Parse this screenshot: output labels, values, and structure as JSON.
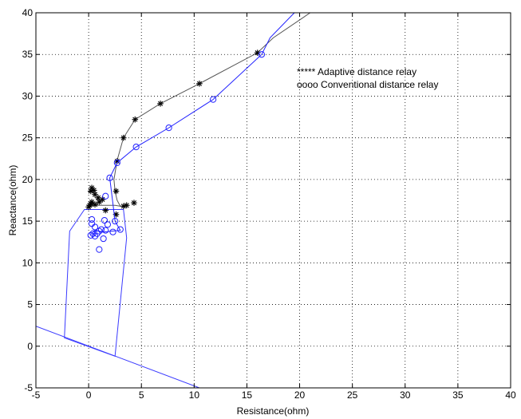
{
  "chart_data": {
    "type": "scatter",
    "xlabel": "Resistance(ohm)",
    "ylabel": "Reactance(ohm)",
    "xlim": [
      -5,
      40
    ],
    "ylim": [
      -5,
      40
    ],
    "xticks": [
      "-5",
      "0",
      "5",
      "10",
      "15",
      "20",
      "25",
      "30",
      "35",
      "40"
    ],
    "yticks": [
      "-5",
      "0",
      "5",
      "10",
      "15",
      "20",
      "25",
      "30",
      "35",
      "40"
    ],
    "grid": true,
    "legend_position": "top-right",
    "legend": [
      "***** Adaptive distance relay",
      "oooo Conventional distance relay"
    ],
    "colors": {
      "adaptive": "#000000",
      "adaptive_line": "#555555",
      "conventional": "#1f1fff",
      "zone": "#3a3aff",
      "grid": "#000000"
    },
    "series": [
      {
        "marker": "star",
        "color": "#000000",
        "trajectory": [
          [
            0.2,
            16.8
          ],
          [
            0.8,
            16.9
          ],
          [
            1.5,
            16.9
          ],
          [
            2.5,
            16.9
          ],
          [
            3.0,
            16.8
          ],
          [
            2.7,
            17.5
          ],
          [
            2.5,
            18.6
          ],
          [
            2.4,
            20.0
          ],
          [
            2.7,
            22.3
          ],
          [
            3.3,
            25.0
          ],
          [
            4.4,
            27.2
          ],
          [
            6.8,
            29.1
          ],
          [
            10.5,
            31.5
          ],
          [
            16.0,
            35.2
          ],
          [
            17.5,
            37.0
          ],
          [
            21.0,
            40.0
          ]
        ],
        "points": [
          [
            0.0,
            16.7
          ],
          [
            0.1,
            16.9
          ],
          [
            0.2,
            17.1
          ],
          [
            0.3,
            17.3
          ],
          [
            0.2,
            18.6
          ],
          [
            0.3,
            19.0
          ],
          [
            0.5,
            18.7
          ],
          [
            0.6,
            18.2
          ],
          [
            0.9,
            17.8
          ],
          [
            1.3,
            17.6
          ],
          [
            0.6,
            17.0
          ],
          [
            1.0,
            17.3
          ],
          [
            1.6,
            16.3
          ],
          [
            2.6,
            15.8
          ],
          [
            2.6,
            18.6
          ],
          [
            3.3,
            16.8
          ],
          [
            3.6,
            16.9
          ],
          [
            4.3,
            17.2
          ],
          [
            2.7,
            22.2
          ],
          [
            3.3,
            25.0
          ],
          [
            4.4,
            27.2
          ],
          [
            6.8,
            29.1
          ],
          [
            10.5,
            31.5
          ],
          [
            16.0,
            35.2
          ]
        ]
      },
      {
        "marker": "circle",
        "color": "#1f1fff",
        "trajectory": [
          [
            0.2,
            13.4
          ],
          [
            0.6,
            13.9
          ],
          [
            1.4,
            13.7
          ],
          [
            2.2,
            13.8
          ],
          [
            3.0,
            13.9
          ],
          [
            2.5,
            15.0
          ],
          [
            2.3,
            17.1
          ],
          [
            2.0,
            20.2
          ],
          [
            2.7,
            22.0
          ],
          [
            4.5,
            23.9
          ],
          [
            7.6,
            26.2
          ],
          [
            11.8,
            29.6
          ],
          [
            16.4,
            35.0
          ],
          [
            17.2,
            37.0
          ],
          [
            19.5,
            40.0
          ]
        ],
        "points": [
          [
            0.2,
            13.3
          ],
          [
            0.4,
            13.5
          ],
          [
            0.6,
            13.2
          ],
          [
            0.8,
            13.5
          ],
          [
            1.0,
            13.8
          ],
          [
            0.3,
            14.7
          ],
          [
            0.3,
            15.2
          ],
          [
            0.6,
            14.3
          ],
          [
            1.2,
            14.0
          ],
          [
            1.6,
            13.9
          ],
          [
            2.3,
            13.7
          ],
          [
            3.0,
            14.0
          ],
          [
            1.5,
            15.1
          ],
          [
            2.5,
            15.0
          ],
          [
            1.8,
            14.6
          ],
          [
            1.4,
            12.9
          ],
          [
            1.0,
            11.6
          ],
          [
            1.6,
            18.0
          ],
          [
            2.0,
            20.2
          ],
          [
            2.7,
            22.0
          ],
          [
            4.5,
            23.9
          ],
          [
            7.6,
            26.2
          ],
          [
            11.8,
            29.6
          ],
          [
            16.4,
            35.0
          ]
        ]
      }
    ],
    "zones": [
      {
        "color": "#3a3aff",
        "polygon": [
          [
            -2.3,
            1.0
          ],
          [
            -1.8,
            13.8
          ],
          [
            -0.4,
            16.4
          ],
          [
            3.3,
            16.4
          ],
          [
            3.6,
            13.0
          ],
          [
            2.5,
            -1.2
          ]
        ]
      },
      {
        "color": "#3a3aff",
        "line": [
          [
            -5.0,
            2.4
          ],
          [
            10.5,
            -5.0
          ]
        ]
      }
    ]
  }
}
